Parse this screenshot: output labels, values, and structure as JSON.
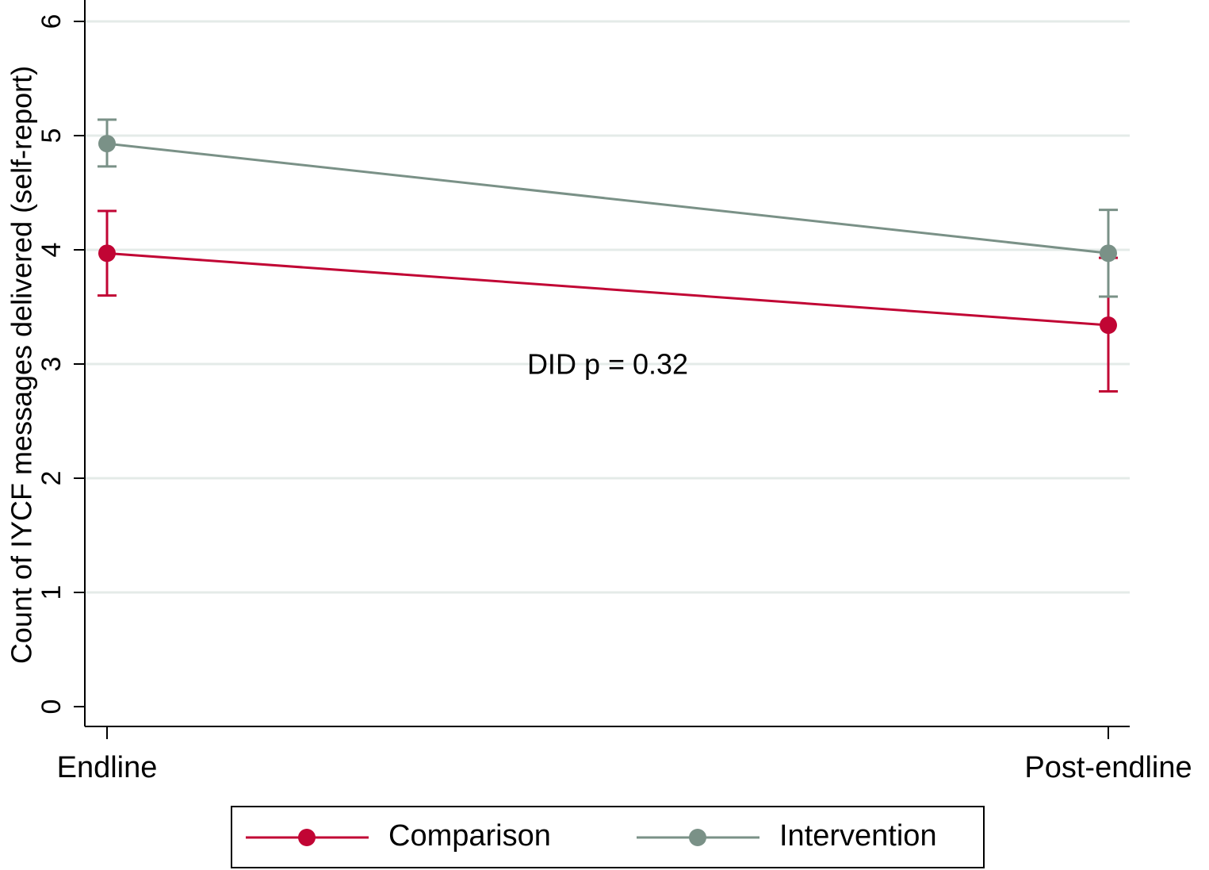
{
  "chart_data": {
    "type": "line",
    "y_label": "Count of IYCF messages delivered (self-report)",
    "annotation": "DID p = 0.32",
    "categories": [
      "Endline",
      "Post-endline"
    ],
    "series": [
      {
        "name": "Comparison",
        "color": "#c10534",
        "values": [
          3.97,
          3.34
        ],
        "lower": [
          3.6,
          2.76
        ],
        "upper": [
          4.34,
          3.93
        ]
      },
      {
        "name": "Intervention",
        "color": "#7a9187",
        "values": [
          4.93,
          3.97
        ],
        "lower": [
          4.73,
          3.59
        ],
        "upper": [
          5.14,
          4.35
        ]
      }
    ],
    "ylim": [
      0,
      6
    ],
    "yticks": [
      0,
      1,
      2,
      3,
      4,
      5,
      6
    ],
    "grid": true
  }
}
